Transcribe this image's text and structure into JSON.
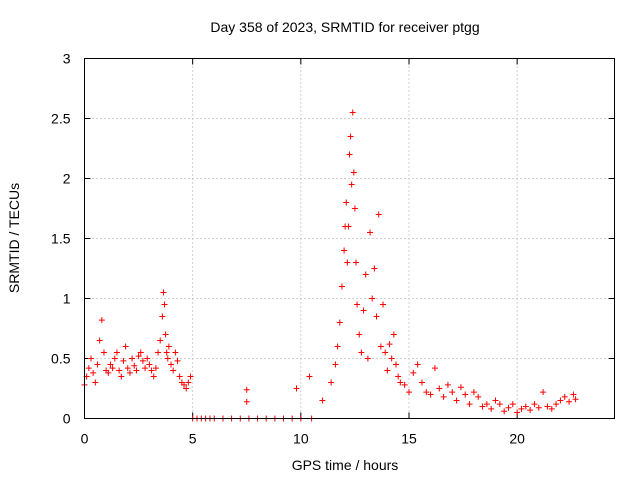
{
  "chart_data": {
    "type": "scatter",
    "title": "Day 358 of 2023, SRMTID for receiver ptgg",
    "xlabel": "GPS time / hours",
    "ylabel": "SRMTID / TECUs",
    "xlim": [
      0,
      24.5
    ],
    "ylim": [
      0,
      3
    ],
    "xticks": [
      "0",
      "5",
      "10",
      "15",
      "20"
    ],
    "yticks": [
      "0",
      "0.5",
      "1",
      "1.5",
      "2",
      "2.5",
      "3"
    ],
    "grid": true,
    "marker": "plus",
    "series": [
      {
        "name": "SRMTID",
        "color": "#ff0000",
        "x": [
          0.0,
          0.1,
          0.2,
          0.3,
          0.4,
          0.5,
          0.6,
          0.7,
          0.8,
          0.9,
          1.0,
          1.1,
          1.2,
          1.3,
          1.4,
          1.5,
          1.6,
          1.7,
          1.8,
          1.9,
          2.0,
          2.1,
          2.2,
          2.3,
          2.4,
          2.5,
          2.6,
          2.7,
          2.8,
          2.9,
          3.0,
          3.1,
          3.2,
          3.3,
          3.4,
          3.5,
          3.6,
          3.65,
          3.7,
          3.75,
          3.8,
          3.85,
          3.9,
          4.0,
          4.1,
          4.2,
          4.3,
          4.4,
          4.5,
          4.6,
          4.7,
          4.8,
          4.9,
          5.0,
          5.2,
          5.4,
          5.6,
          5.8,
          6.0,
          6.4,
          6.8,
          7.2,
          7.6,
          7.5,
          7.5,
          8.0,
          8.4,
          8.8,
          9.2,
          9.6,
          9.8,
          10.0,
          10.4,
          10.5,
          11.0,
          11.4,
          11.6,
          11.7,
          11.8,
          11.9,
          12.0,
          12.05,
          12.1,
          12.15,
          12.2,
          12.25,
          12.3,
          12.35,
          12.4,
          12.45,
          12.5,
          12.55,
          12.6,
          12.7,
          12.8,
          12.9,
          13.0,
          13.1,
          13.2,
          13.3,
          13.4,
          13.5,
          13.6,
          13.7,
          13.8,
          13.9,
          14.0,
          14.1,
          14.2,
          14.3,
          14.4,
          14.5,
          14.6,
          14.8,
          15.0,
          15.2,
          15.4,
          15.6,
          15.8,
          16.0,
          16.2,
          16.4,
          16.6,
          16.8,
          17.0,
          17.2,
          17.4,
          17.6,
          17.8,
          18.0,
          18.2,
          18.4,
          18.6,
          18.8,
          19.0,
          19.2,
          19.4,
          19.6,
          19.8,
          20.0,
          20.2,
          20.4,
          20.6,
          20.8,
          21.0,
          21.2,
          21.4,
          21.6,
          21.8,
          22.0,
          22.2,
          22.4,
          22.6,
          22.7
        ],
        "y": [
          0.28,
          0.35,
          0.42,
          0.5,
          0.38,
          0.3,
          0.45,
          0.65,
          0.82,
          0.55,
          0.4,
          0.38,
          0.45,
          0.42,
          0.5,
          0.55,
          0.4,
          0.35,
          0.48,
          0.6,
          0.42,
          0.38,
          0.5,
          0.44,
          0.4,
          0.52,
          0.55,
          0.48,
          0.42,
          0.5,
          0.45,
          0.4,
          0.35,
          0.42,
          0.55,
          0.65,
          0.85,
          1.05,
          0.95,
          0.7,
          0.55,
          0.5,
          0.6,
          0.45,
          0.4,
          0.55,
          0.48,
          0.35,
          0.3,
          0.28,
          0.25,
          0.3,
          0.35,
          0.0,
          0.0,
          0.0,
          0.0,
          0.0,
          0.0,
          0.0,
          0.0,
          0.0,
          0.0,
          0.24,
          0.14,
          0.0,
          0.0,
          0.0,
          0.0,
          0.0,
          0.25,
          0.0,
          0.35,
          0.0,
          0.15,
          0.3,
          0.45,
          0.6,
          0.8,
          1.1,
          1.4,
          1.6,
          1.8,
          1.3,
          1.6,
          2.2,
          2.35,
          1.95,
          2.55,
          2.05,
          1.75,
          1.3,
          0.95,
          0.7,
          0.55,
          0.9,
          1.2,
          0.5,
          1.55,
          1.0,
          1.25,
          0.85,
          1.7,
          0.6,
          0.95,
          0.55,
          0.4,
          0.62,
          0.5,
          0.7,
          0.45,
          0.35,
          0.3,
          0.28,
          0.22,
          0.38,
          0.45,
          0.3,
          0.22,
          0.2,
          0.42,
          0.25,
          0.18,
          0.28,
          0.22,
          0.15,
          0.26,
          0.2,
          0.12,
          0.22,
          0.18,
          0.1,
          0.12,
          0.08,
          0.15,
          0.12,
          0.06,
          0.09,
          0.12,
          0.05,
          0.08,
          0.1,
          0.07,
          0.12,
          0.09,
          0.22,
          0.1,
          0.08,
          0.12,
          0.15,
          0.18,
          0.14,
          0.2,
          0.16
        ]
      }
    ]
  }
}
